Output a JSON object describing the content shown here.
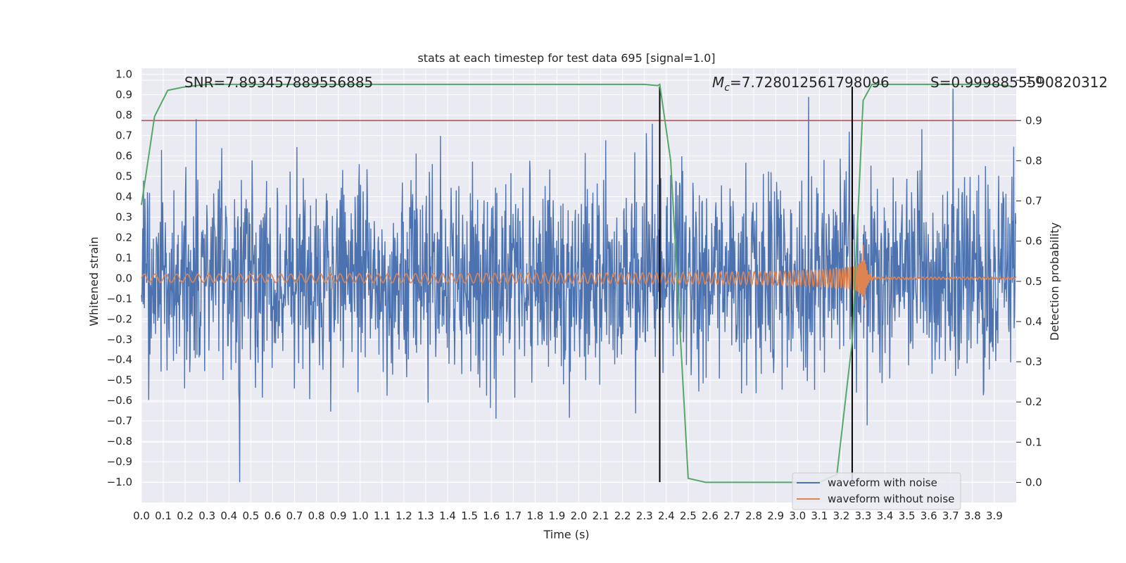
{
  "chart_data": {
    "type": "line",
    "title": "stats at each timestep for test data 695 [signal=1.0]",
    "xlabel": "Time (s)",
    "ylabel": "Whitened strain",
    "y2label": "Detection probability",
    "xlim": [
      0.0,
      4.0
    ],
    "ylim": [
      -1.1,
      1.03
    ],
    "y2lim": [
      -0.05,
      1.03
    ],
    "x_ticks": [
      0.0,
      0.1,
      0.2,
      0.3,
      0.4,
      0.5,
      0.6,
      0.7,
      0.8,
      0.9,
      1.0,
      1.1,
      1.2,
      1.3,
      1.4,
      1.5,
      1.6,
      1.7,
      1.8,
      1.9,
      2.0,
      2.1,
      2.2,
      2.3,
      2.4,
      2.5,
      2.6,
      2.7,
      2.8,
      2.9,
      3.0,
      3.1,
      3.2,
      3.3,
      3.4,
      3.5,
      3.6,
      3.7,
      3.8,
      3.9
    ],
    "x_tick_labels": [
      "0.0",
      "0.1",
      "0.2",
      "0.3",
      "0.4",
      "0.5",
      "0.6",
      "0.7",
      "0.8",
      "0.9",
      "1.0",
      "1.1",
      "1.2",
      "1.3",
      "1.4",
      "1.5",
      "1.6",
      "1.7",
      "1.8",
      "1.9",
      "2.0",
      "2.1",
      "2.2",
      "2.3",
      "2.4",
      "2.5",
      "2.6",
      "2.7",
      "2.8",
      "2.9",
      "3.0",
      "3.1",
      "3.2",
      "3.3",
      "3.4",
      "3.5",
      "3.6",
      "3.7",
      "3.8",
      "3.9"
    ],
    "y_ticks": [
      1.0,
      0.9,
      0.8,
      0.7,
      0.6,
      0.5,
      0.4,
      0.3,
      0.2,
      0.1,
      0.0,
      -0.1,
      -0.2,
      -0.3,
      -0.4,
      -0.5,
      -0.6,
      -0.7,
      -0.8,
      -0.9,
      -1.0
    ],
    "y_tick_labels": [
      "1.0",
      "0.9",
      "0.8",
      "0.7",
      "0.6",
      "0.5",
      "0.4",
      "0.3",
      "0.2",
      "0.1",
      "0.0",
      "−0.1",
      "−0.2",
      "−0.3",
      "−0.4",
      "−0.5",
      "−0.6",
      "−0.7",
      "−0.8",
      "−0.9",
      "−1.0"
    ],
    "y2_ticks": [
      1.0,
      0.9,
      0.8,
      0.7,
      0.6,
      0.5,
      0.4,
      0.3,
      0.2,
      0.1,
      0.0
    ],
    "y2_tick_labels": [
      "1.0",
      "0.9",
      "0.8",
      "0.7",
      "0.6",
      "0.5",
      "0.4",
      "0.3",
      "0.2",
      "0.1",
      "0.0"
    ],
    "annotations": {
      "snr": "SNR=7.893457889556885",
      "mc_symbol": "M",
      "mc_subscript": "c",
      "mc_value": "=7.728012561798096",
      "s": "S=0.9998855590820312"
    },
    "threshold": {
      "value": 0.9,
      "axis": "y2",
      "color": "#c44e52"
    },
    "vlines": [
      {
        "x": 2.37,
        "ymin": -1.0,
        "ymax": 0.94
      },
      {
        "x": 3.25,
        "ymin": -1.0,
        "ymax": 0.94
      }
    ],
    "noise_series": {
      "name": "waveform with noise",
      "color": "#4c72b0",
      "n_points": 2048,
      "seed": 695,
      "sigma": 0.25,
      "y_range": [
        -1.0,
        1.0
      ],
      "marked_peaks": [
        {
          "x": 0.45,
          "y": -1.0
        },
        {
          "x": 3.71,
          "y": 0.93
        },
        {
          "x": 0.25,
          "y": 0.78
        },
        {
          "x": 3.05,
          "y": 0.89
        }
      ]
    },
    "clean_series": {
      "name": "waveform without noise",
      "color": "#dd8452",
      "t_merger": 3.3,
      "amp_start": 0.02,
      "amp_peak": 0.18,
      "ringdown_tail": 0.006,
      "freq_start": 20.0
    },
    "probability_series": {
      "name": "detection probability",
      "axis": "y2",
      "color": "#55a868",
      "x": [
        0.0,
        0.06,
        0.12,
        0.19,
        0.3,
        0.4,
        0.6,
        1.0,
        1.5,
        2.0,
        2.3,
        2.36,
        2.37,
        2.42,
        2.5,
        2.58,
        2.7,
        3.0,
        3.1,
        3.18,
        3.25,
        3.3,
        3.34,
        3.5,
        3.9,
        3.98
      ],
      "y": [
        0.69,
        0.91,
        0.975,
        0.983,
        0.99,
        0.99,
        0.99,
        0.99,
        0.99,
        0.99,
        0.99,
        0.987,
        0.99,
        0.8,
        0.01,
        0.0,
        0.0,
        0.0,
        0.0,
        0.02,
        0.35,
        0.95,
        0.99,
        0.99,
        0.99,
        0.985
      ]
    },
    "legend": {
      "placement": "lower-right",
      "entries": [
        {
          "label": "waveform with noise",
          "color": "#4c72b0"
        },
        {
          "label": "waveform without noise",
          "color": "#dd8452"
        }
      ]
    },
    "grid": true,
    "background": "#eaeaf2",
    "colors": {
      "grid": "#ffffff",
      "vline": "#000000"
    }
  }
}
